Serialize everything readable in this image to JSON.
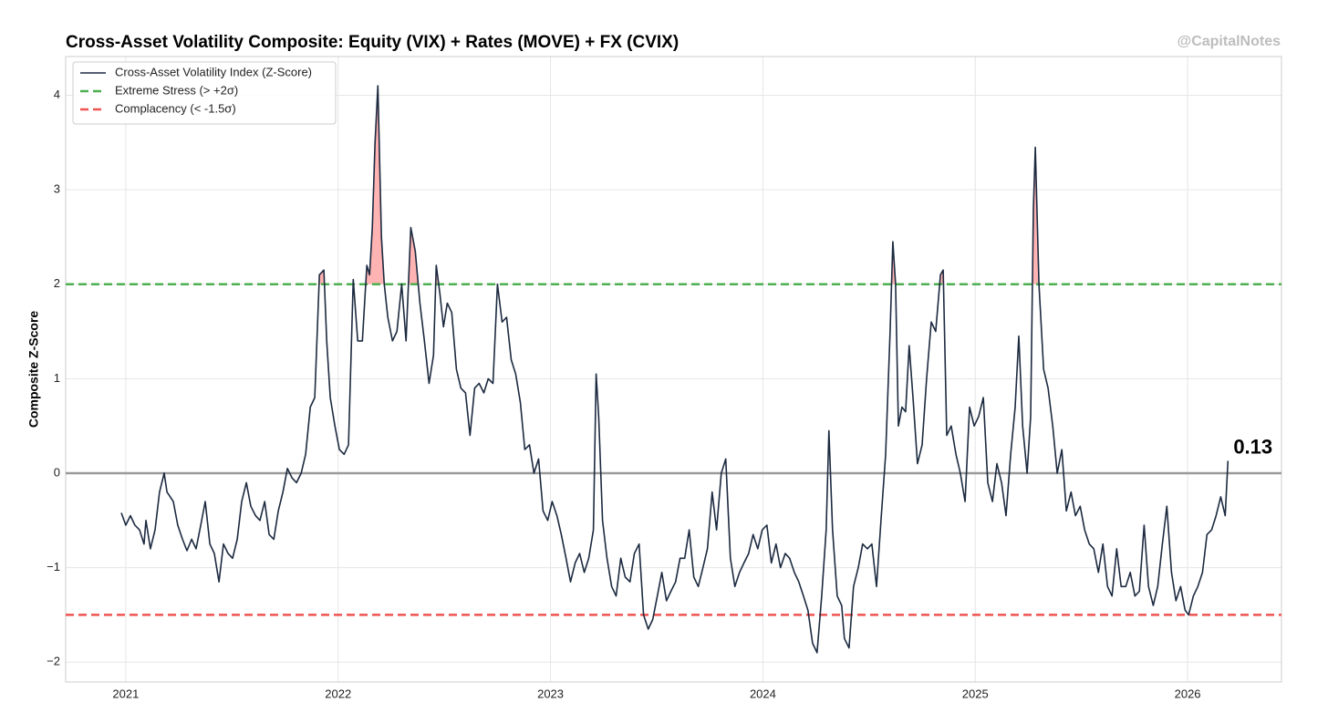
{
  "chart_data": {
    "type": "line",
    "title": "Cross-Asset Volatility Composite: Equity (VIX) + Rates (MOVE) + FX (CVIX)",
    "watermark": "@CapitalNotes",
    "ylabel": "Composite Z-Score",
    "annotation": "0.13",
    "xlim": [
      2020.717,
      2026.442
    ],
    "ylim": [
      -2.21,
      4.41
    ],
    "xticks": [
      2021,
      2022,
      2023,
      2024,
      2025,
      2026
    ],
    "yticks": [
      {
        "value": -2,
        "label": "−2"
      },
      {
        "value": -1,
        "label": "−1"
      },
      0,
      1,
      2,
      3,
      4
    ],
    "grid": true,
    "legend": "upper left",
    "baseline": 0,
    "baseline_color": "#999999",
    "fill_above": 2,
    "fill_color": "#ffb3b3",
    "reference_lines": [
      {
        "name": "Extreme Stress (> +2σ)",
        "value": 2,
        "color": "#4caf50"
      },
      {
        "name": "Complacency (< -1.5σ)",
        "value": -1.5,
        "color": "#ef5350"
      }
    ],
    "x": [
      2020.979,
      2021.0,
      2021.022,
      2021.043,
      2021.065,
      2021.086,
      2021.095,
      2021.116,
      2021.138,
      2021.159,
      2021.181,
      2021.194,
      2021.224,
      2021.245,
      2021.267,
      2021.288,
      2021.31,
      2021.331,
      2021.353,
      2021.374,
      2021.396,
      2021.417,
      2021.439,
      2021.46,
      2021.482,
      2021.503,
      2021.525,
      2021.546,
      2021.568,
      2021.589,
      2021.611,
      2021.632,
      2021.654,
      2021.675,
      2021.697,
      2021.718,
      2021.74,
      2021.761,
      2021.783,
      2021.804,
      2021.826,
      2021.847,
      2021.869,
      2021.89,
      2021.912,
      2021.933,
      2021.946,
      2021.963,
      2021.985,
      2022.006,
      2022.028,
      2022.049,
      2022.071,
      2022.092,
      2022.114,
      2022.135,
      2022.148,
      2022.161,
      2022.174,
      2022.187,
      2022.204,
      2022.217,
      2022.234,
      2022.256,
      2022.277,
      2022.299,
      2022.32,
      2022.342,
      2022.363,
      2022.385,
      2022.406,
      2022.428,
      2022.449,
      2022.462,
      2022.479,
      2022.496,
      2022.514,
      2022.535,
      2022.557,
      2022.578,
      2022.6,
      2022.621,
      2022.643,
      2022.664,
      2022.686,
      2022.707,
      2022.729,
      2022.75,
      2022.772,
      2022.793,
      2022.815,
      2022.836,
      2022.858,
      2022.879,
      2022.901,
      2022.922,
      2022.944,
      2022.965,
      2022.987,
      2023.008,
      2023.03,
      2023.051,
      2023.073,
      2023.094,
      2023.116,
      2023.137,
      2023.159,
      2023.18,
      2023.202,
      2023.215,
      2023.227,
      2023.245,
      2023.266,
      2023.288,
      2023.309,
      2023.331,
      2023.352,
      2023.374,
      2023.395,
      2023.417,
      2023.438,
      2023.46,
      2023.481,
      2023.503,
      2023.524,
      2023.546,
      2023.567,
      2023.589,
      2023.61,
      2023.632,
      2023.653,
      2023.675,
      2023.696,
      2023.718,
      2023.739,
      2023.761,
      2023.782,
      2023.804,
      2023.825,
      2023.847,
      2023.868,
      2023.89,
      2023.911,
      2023.933,
      2023.954,
      2023.976,
      2023.997,
      2024.019,
      2024.04,
      2024.062,
      2024.083,
      2024.105,
      2024.126,
      2024.148,
      2024.169,
      2024.191,
      2024.212,
      2024.234,
      2024.255,
      2024.277,
      2024.298,
      2024.311,
      2024.328,
      2024.35,
      2024.371,
      2024.384,
      2024.406,
      2024.427,
      2024.449,
      2024.47,
      2024.492,
      2024.513,
      2024.535,
      2024.556,
      2024.578,
      2024.599,
      2024.612,
      2024.625,
      2024.638,
      2024.655,
      2024.672,
      2024.689,
      2024.707,
      2024.728,
      2024.75,
      2024.771,
      2024.793,
      2024.814,
      2024.836,
      2024.849,
      2024.866,
      2024.887,
      2024.909,
      2024.93,
      2024.952,
      2024.973,
      2024.995,
      2025.016,
      2025.038,
      2025.059,
      2025.081,
      2025.102,
      2025.124,
      2025.145,
      2025.167,
      2025.188,
      2025.205,
      2025.223,
      2025.244,
      2025.261,
      2025.274,
      2025.283,
      2025.3,
      2025.322,
      2025.343,
      2025.365,
      2025.386,
      2025.408,
      2025.429,
      2025.451,
      2025.472,
      2025.494,
      2025.515,
      2025.537,
      2025.558,
      2025.58,
      2025.601,
      2025.623,
      2025.644,
      2025.666,
      2025.687,
      2025.709,
      2025.73,
      2025.752,
      2025.773,
      2025.795,
      2025.816,
      2025.838,
      2025.859,
      2025.881,
      2025.902,
      2025.924,
      2025.945,
      2025.967,
      2025.988,
      2026.005,
      2026.027,
      2026.048,
      2026.07,
      2026.091,
      2026.113,
      2026.134,
      2026.156,
      2026.177,
      2026.19
    ],
    "series": [
      {
        "name": "Cross-Asset Volatility Index (Z-Score)",
        "color": "#1c2a40",
        "values": [
          -0.42,
          -0.55,
          -0.45,
          -0.55,
          -0.6,
          -0.75,
          -0.5,
          -0.8,
          -0.6,
          -0.2,
          0.0,
          -0.2,
          -0.3,
          -0.55,
          -0.7,
          -0.82,
          -0.7,
          -0.8,
          -0.55,
          -0.3,
          -0.75,
          -0.85,
          -1.15,
          -0.75,
          -0.85,
          -0.9,
          -0.7,
          -0.3,
          -0.1,
          -0.35,
          -0.45,
          -0.5,
          -0.3,
          -0.65,
          -0.7,
          -0.4,
          -0.2,
          0.05,
          -0.05,
          -0.1,
          0.0,
          0.2,
          0.7,
          0.8,
          2.1,
          2.15,
          1.4,
          0.8,
          0.5,
          0.25,
          0.2,
          0.3,
          2.05,
          1.4,
          1.4,
          2.2,
          2.1,
          2.6,
          3.5,
          4.1,
          2.5,
          2.0,
          1.65,
          1.4,
          1.5,
          2.0,
          1.4,
          2.6,
          2.35,
          1.8,
          1.4,
          0.95,
          1.25,
          2.2,
          1.9,
          1.55,
          1.8,
          1.7,
          1.1,
          0.9,
          0.85,
          0.4,
          0.9,
          0.95,
          0.85,
          1.0,
          0.95,
          2.0,
          1.6,
          1.65,
          1.2,
          1.05,
          0.75,
          0.25,
          0.3,
          0.0,
          0.15,
          -0.4,
          -0.5,
          -0.3,
          -0.45,
          -0.65,
          -0.9,
          -1.15,
          -0.95,
          -0.85,
          -1.05,
          -0.9,
          -0.6,
          1.05,
          0.6,
          -0.5,
          -0.9,
          -1.2,
          -1.3,
          -0.9,
          -1.1,
          -1.15,
          -0.85,
          -0.75,
          -1.5,
          -1.65,
          -1.55,
          -1.3,
          -1.05,
          -1.35,
          -1.25,
          -1.15,
          -0.9,
          -0.9,
          -0.6,
          -1.1,
          -1.2,
          -1.0,
          -0.8,
          -0.2,
          -0.6,
          0.0,
          0.15,
          -0.9,
          -1.2,
          -1.05,
          -0.95,
          -0.85,
          -0.65,
          -0.8,
          -0.6,
          -0.55,
          -0.95,
          -0.75,
          -1.0,
          -0.85,
          -0.9,
          -1.05,
          -1.15,
          -1.3,
          -1.45,
          -1.8,
          -1.9,
          -1.3,
          -0.6,
          0.45,
          -0.6,
          -1.3,
          -1.4,
          -1.75,
          -1.85,
          -1.2,
          -1.0,
          -0.75,
          -0.8,
          -0.75,
          -1.2,
          -0.5,
          0.2,
          1.5,
          2.45,
          2.0,
          0.5,
          0.7,
          0.65,
          1.35,
          0.8,
          0.1,
          0.3,
          1.0,
          1.6,
          1.5,
          2.1,
          2.15,
          0.4,
          0.5,
          0.2,
          0.0,
          -0.3,
          0.7,
          0.5,
          0.6,
          0.8,
          -0.1,
          -0.3,
          0.1,
          -0.1,
          -0.45,
          0.2,
          0.7,
          1.45,
          0.5,
          0.0,
          0.6,
          2.8,
          3.45,
          2.0,
          1.1,
          0.9,
          0.5,
          0.0,
          0.25,
          -0.4,
          -0.2,
          -0.45,
          -0.35,
          -0.6,
          -0.75,
          -0.8,
          -1.05,
          -0.75,
          -1.2,
          -1.3,
          -0.8,
          -1.2,
          -1.2,
          -1.05,
          -1.3,
          -1.25,
          -0.55,
          -1.2,
          -1.4,
          -1.2,
          -0.75,
          -0.35,
          -1.05,
          -1.35,
          -1.2,
          -1.45,
          -1.5,
          -1.3,
          -1.2,
          -1.05,
          -0.65,
          -0.6,
          -0.45,
          -0.25,
          -0.45,
          0.13
        ]
      }
    ]
  }
}
